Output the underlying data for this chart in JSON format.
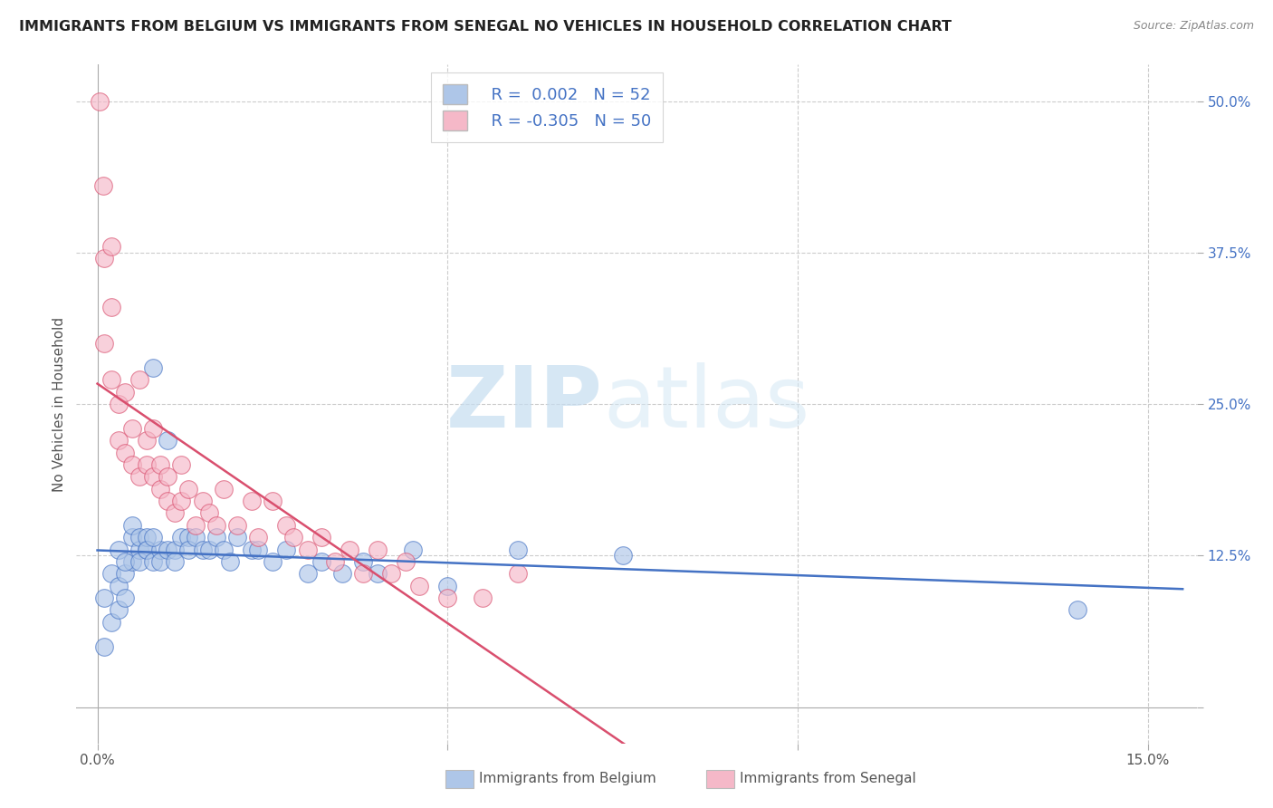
{
  "title": "IMMIGRANTS FROM BELGIUM VS IMMIGRANTS FROM SENEGAL NO VEHICLES IN HOUSEHOLD CORRELATION CHART",
  "source": "Source: ZipAtlas.com",
  "ylabel": "No Vehicles in Household",
  "xlim": [
    -0.002,
    0.155
  ],
  "ylim": [
    -0.02,
    0.52
  ],
  "plot_xlim": [
    0.0,
    0.15
  ],
  "plot_ylim": [
    0.0,
    0.5
  ],
  "xticks": [
    0.0,
    0.05,
    0.1,
    0.15
  ],
  "xticklabels": [
    "0.0%",
    "",
    "",
    "15.0%"
  ],
  "yticks_right": [
    0.0,
    0.125,
    0.25,
    0.375,
    0.5
  ],
  "r_belgium": 0.002,
  "n_belgium": 52,
  "r_senegal": -0.305,
  "n_senegal": 50,
  "color_belgium": "#aec6e8",
  "color_senegal": "#f5b8c8",
  "line_color_belgium": "#4472c4",
  "line_color_senegal": "#d94f6e",
  "watermark_zip": "ZIP",
  "watermark_atlas": "atlas",
  "legend_label_belgium": "Immigrants from Belgium",
  "legend_label_senegal": "Immigrants from Senegal",
  "belgium_x": [
    0.001,
    0.002,
    0.001,
    0.003,
    0.002,
    0.003,
    0.004,
    0.003,
    0.004,
    0.005,
    0.005,
    0.004,
    0.006,
    0.005,
    0.006,
    0.007,
    0.006,
    0.007,
    0.008,
    0.007,
    0.008,
    0.009,
    0.008,
    0.009,
    0.01,
    0.01,
    0.011,
    0.012,
    0.011,
    0.013,
    0.013,
    0.014,
    0.015,
    0.016,
    0.017,
    0.018,
    0.019,
    0.02,
    0.022,
    0.023,
    0.025,
    0.027,
    0.03,
    0.032,
    0.035,
    0.038,
    0.04,
    0.045,
    0.05,
    0.06,
    0.075,
    0.14
  ],
  "belgium_y": [
    0.05,
    0.07,
    0.09,
    0.08,
    0.11,
    0.1,
    0.09,
    0.13,
    0.11,
    0.12,
    0.14,
    0.12,
    0.13,
    0.15,
    0.14,
    0.13,
    0.12,
    0.14,
    0.28,
    0.13,
    0.12,
    0.13,
    0.14,
    0.12,
    0.13,
    0.22,
    0.13,
    0.14,
    0.12,
    0.14,
    0.13,
    0.14,
    0.13,
    0.13,
    0.14,
    0.13,
    0.12,
    0.14,
    0.13,
    0.13,
    0.12,
    0.13,
    0.11,
    0.12,
    0.11,
    0.12,
    0.11,
    0.13,
    0.1,
    0.13,
    0.125,
    0.08
  ],
  "senegal_x": [
    0.0003,
    0.0008,
    0.001,
    0.001,
    0.002,
    0.002,
    0.002,
    0.003,
    0.003,
    0.004,
    0.004,
    0.005,
    0.005,
    0.006,
    0.006,
    0.007,
    0.007,
    0.008,
    0.008,
    0.009,
    0.009,
    0.01,
    0.01,
    0.011,
    0.012,
    0.012,
    0.013,
    0.014,
    0.015,
    0.016,
    0.017,
    0.018,
    0.02,
    0.022,
    0.023,
    0.025,
    0.027,
    0.028,
    0.03,
    0.032,
    0.034,
    0.036,
    0.038,
    0.04,
    0.042,
    0.044,
    0.046,
    0.05,
    0.055,
    0.06
  ],
  "senegal_y": [
    0.5,
    0.43,
    0.37,
    0.3,
    0.33,
    0.38,
    0.27,
    0.25,
    0.22,
    0.21,
    0.26,
    0.23,
    0.2,
    0.27,
    0.19,
    0.22,
    0.2,
    0.19,
    0.23,
    0.18,
    0.2,
    0.17,
    0.19,
    0.16,
    0.2,
    0.17,
    0.18,
    0.15,
    0.17,
    0.16,
    0.15,
    0.18,
    0.15,
    0.17,
    0.14,
    0.17,
    0.15,
    0.14,
    0.13,
    0.14,
    0.12,
    0.13,
    0.11,
    0.13,
    0.11,
    0.12,
    0.1,
    0.09,
    0.09,
    0.11
  ]
}
